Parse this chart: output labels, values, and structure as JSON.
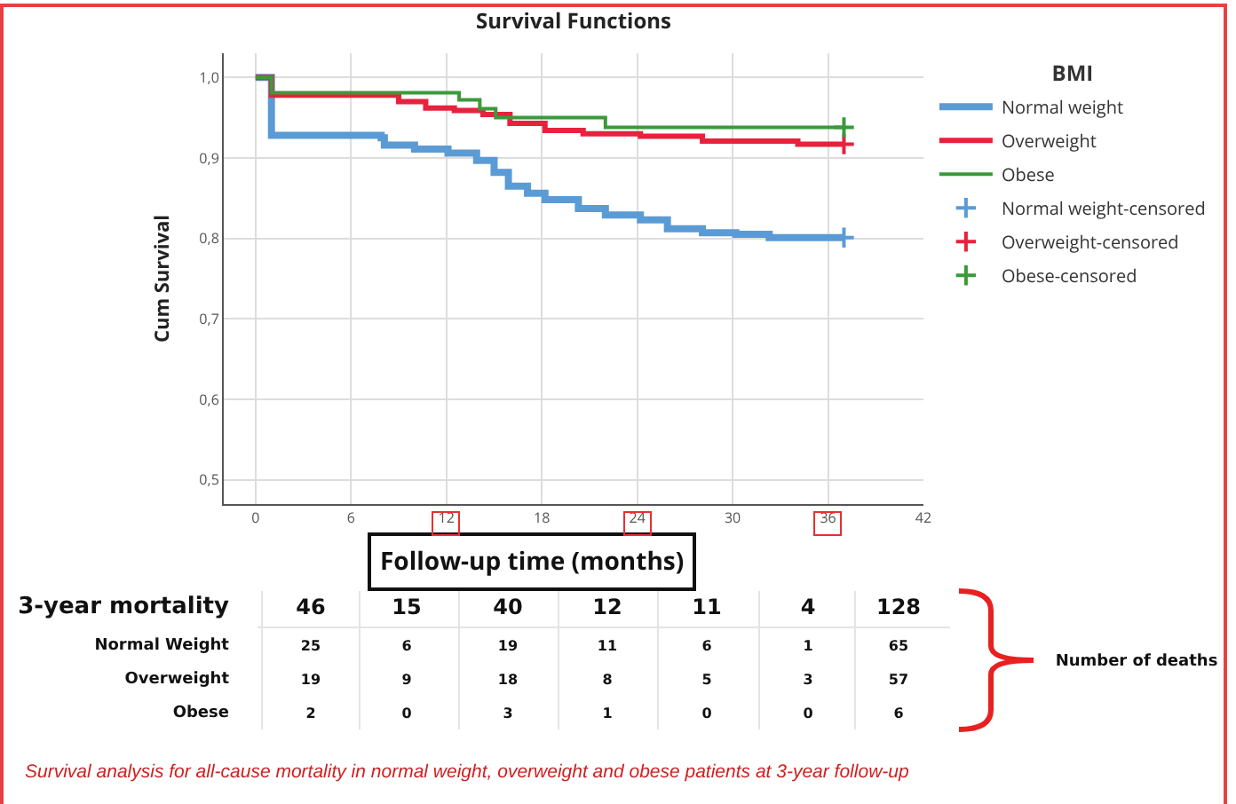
{
  "chart_data": {
    "type": "step",
    "title": "Survival Functions",
    "xlabel": "Follow-up time (months)",
    "ylabel": "Cum Survival",
    "legend_title": "BMI",
    "xlim": [
      -2,
      42
    ],
    "xticks": [
      0,
      6,
      12,
      18,
      24,
      30,
      36,
      42
    ],
    "ylim": [
      0.47,
      1.03
    ],
    "yticks": [
      {
        "value": 0.5,
        "label": "0,5"
      },
      {
        "value": 0.6,
        "label": "0,6"
      },
      {
        "value": 0.7,
        "label": "0,7"
      },
      {
        "value": 0.8,
        "label": "0,8"
      },
      {
        "value": 0.9,
        "label": "0,9"
      },
      {
        "value": 1.0,
        "label": "1,0"
      }
    ],
    "grid": true,
    "legend": "top right",
    "series": [
      {
        "name": "Normal weight",
        "color": "#5b9bd5",
        "x": [
          0,
          1,
          7.9,
          8.1,
          10,
          12.1,
          13.9,
          15,
          15.9,
          17.1,
          18.2,
          20.3,
          22,
          24.2,
          25.9,
          28.1,
          30.2,
          32.3,
          37
        ],
        "values": [
          1.0,
          0.928,
          0.925,
          0.916,
          0.911,
          0.906,
          0.897,
          0.882,
          0.865,
          0.856,
          0.848,
          0.837,
          0.829,
          0.823,
          0.812,
          0.807,
          0.805,
          0.801,
          0.801
        ]
      },
      {
        "name": "Overweight",
        "color": "#e8213c",
        "x": [
          0,
          1,
          9,
          10.7,
          12.5,
          14.3,
          16,
          18.2,
          20.6,
          24.2,
          28.1,
          34.1,
          37
        ],
        "values": [
          1.0,
          0.978,
          0.97,
          0.962,
          0.959,
          0.954,
          0.943,
          0.934,
          0.93,
          0.927,
          0.921,
          0.917,
          0.917
        ]
      },
      {
        "name": "Obese",
        "color": "#3a9a3a",
        "x": [
          0,
          1,
          12.8,
          14.1,
          15.1,
          22,
          37
        ],
        "values": [
          1.0,
          0.981,
          0.972,
          0.961,
          0.95,
          0.938,
          0.938
        ]
      },
      {
        "name": "Normal weight-censored",
        "type": "scatter",
        "marker": "cross",
        "color": "#5b9bd5",
        "x": [
          37
        ],
        "values": [
          0.801
        ]
      },
      {
        "name": "Overweight-censored",
        "type": "scatter",
        "marker": "cross",
        "color": "#e8213c",
        "x": [
          37
        ],
        "values": [
          0.917
        ]
      },
      {
        "name": "Obese-censored",
        "type": "scatter",
        "marker": "cross",
        "color": "#3a9a3a",
        "x": [
          37
        ],
        "values": [
          0.938
        ]
      }
    ],
    "annotations": [
      "3-year mortality",
      "46",
      "15",
      "40",
      "12",
      "11",
      "4",
      "128",
      "Normal Weight",
      "25",
      "6",
      "19",
      "11",
      "6",
      "1",
      "65",
      "Overweight",
      "19",
      "9",
      "18",
      "8",
      "5",
      "3",
      "57",
      "Obese",
      "2",
      "0",
      "3",
      "1",
      "0",
      "0",
      "6",
      "Number of deaths",
      "Survival analysis for all-cause mortality in normal weight, overweight and obese patients at 3-year follow-up"
    ]
  }
}
